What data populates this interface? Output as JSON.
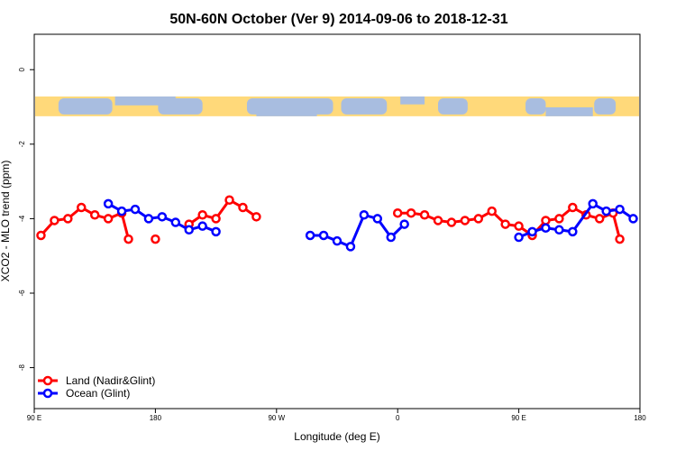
{
  "chart_data": {
    "type": "line",
    "title": "50N-60N October (Ver 9)   2014-09-06 to 2018-12-31",
    "xlabel": "Longitude (deg E)",
    "ylabel": "XCO2 - MLO trend (ppm)",
    "xlim": [
      90,
      540
    ],
    "ylim": [
      -9.1,
      0.95
    ],
    "x_ticks": [
      {
        "value": 90,
        "label": "90 E"
      },
      {
        "value": 180,
        "label": "180"
      },
      {
        "value": 270,
        "label": "90 W"
      },
      {
        "value": 360,
        "label": "0"
      },
      {
        "value": 450,
        "label": "90 E"
      },
      {
        "value": 540,
        "label": "180"
      }
    ],
    "y_ticks": [
      {
        "value": 0,
        "label": "0"
      },
      {
        "value": -2,
        "label": "-2"
      },
      {
        "value": -4,
        "label": "-4"
      },
      {
        "value": -6,
        "label": "-6"
      },
      {
        "value": -8,
        "label": "-8"
      }
    ],
    "map_band": {
      "ymin": -1.25,
      "ymax": -0.72,
      "land_color": "#ffd97a",
      "ocean_color": "#a8bde0"
    },
    "series": [
      {
        "name": "Land (Nadir&Glint)",
        "color": "#ff0000",
        "segments": [
          [
            [
              95,
              -4.45
            ],
            [
              105,
              -4.05
            ],
            [
              115,
              -4.0
            ],
            [
              125,
              -3.7
            ],
            [
              135,
              -3.9
            ],
            [
              145,
              -4.0
            ],
            [
              155,
              -3.85
            ],
            [
              160,
              -4.55
            ]
          ],
          [
            [
              180,
              -4.55
            ]
          ],
          [
            [
              205,
              -4.15
            ],
            [
              215,
              -3.9
            ],
            [
              225,
              -4.0
            ],
            [
              235,
              -3.5
            ],
            [
              245,
              -3.7
            ],
            [
              255,
              -3.95
            ]
          ],
          [
            [
              360,
              -3.85
            ],
            [
              370,
              -3.85
            ],
            [
              380,
              -3.9
            ],
            [
              390,
              -4.05
            ],
            [
              400,
              -4.1
            ],
            [
              410,
              -4.05
            ],
            [
              420,
              -4.0
            ],
            [
              430,
              -3.8
            ],
            [
              440,
              -4.15
            ],
            [
              450,
              -4.2
            ],
            [
              460,
              -4.45
            ],
            [
              470,
              -4.05
            ],
            [
              480,
              -4.0
            ],
            [
              490,
              -3.7
            ],
            [
              500,
              -3.9
            ],
            [
              510,
              -4.0
            ],
            [
              520,
              -3.85
            ],
            [
              525,
              -4.55
            ]
          ]
        ]
      },
      {
        "name": "Ocean (Glint)",
        "color": "#0000ff",
        "segments": [
          [
            [
              145,
              -3.6
            ],
            [
              155,
              -3.8
            ],
            [
              165,
              -3.75
            ],
            [
              175,
              -4.0
            ],
            [
              185,
              -3.95
            ],
            [
              195,
              -4.1
            ],
            [
              205,
              -4.3
            ],
            [
              215,
              -4.2
            ],
            [
              225,
              -4.35
            ]
          ],
          [
            [
              295,
              -4.45
            ],
            [
              305,
              -4.45
            ],
            [
              315,
              -4.6
            ],
            [
              325,
              -4.75
            ],
            [
              335,
              -3.9
            ],
            [
              345,
              -4.0
            ],
            [
              355,
              -4.5
            ],
            [
              365,
              -4.15
            ]
          ],
          [
            [
              450,
              -4.5
            ],
            [
              460,
              -4.35
            ],
            [
              470,
              -4.25
            ],
            [
              480,
              -4.3
            ],
            [
              490,
              -4.35
            ],
            [
              505,
              -3.6
            ],
            [
              515,
              -3.8
            ],
            [
              525,
              -3.75
            ],
            [
              535,
              -4.0
            ]
          ]
        ]
      }
    ],
    "legend": {
      "position": "bottom-left"
    }
  }
}
